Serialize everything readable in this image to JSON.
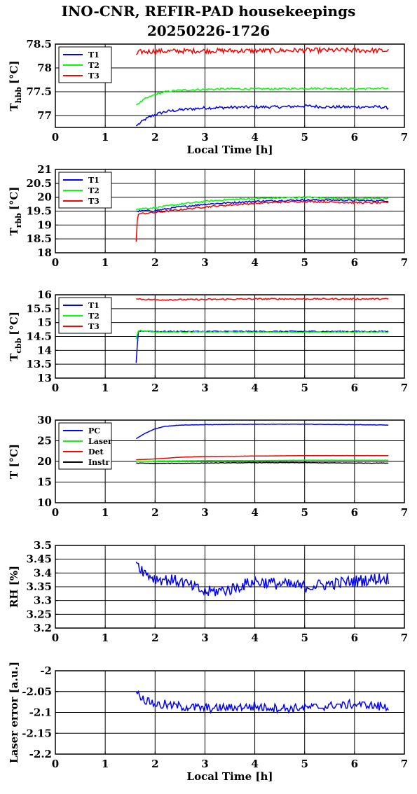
{
  "title": {
    "line1": "INO-CNR, REFIR-PAD housekeepings",
    "line2": "20250226-1726"
  },
  "colors": {
    "blue": "#0000ff",
    "green": "#00ff00",
    "red": "#ff0000",
    "black": "#000000"
  },
  "chart_data": [
    {
      "type": "line",
      "ylabel": "T",
      "ylabel_sub": "hbb",
      "ylabel_unit": "[°C]",
      "xlabel": "Local Time [h]",
      "xlim": [
        0,
        7
      ],
      "ylim": [
        76.75,
        78.5
      ],
      "yticks": [
        77,
        77.5,
        78,
        78.5
      ],
      "xticks": [
        0,
        1,
        2,
        3,
        4,
        5,
        6,
        7
      ],
      "grid": true,
      "legend": "top-left",
      "series": [
        {
          "name": "T1",
          "color": "#0000ff",
          "x": [
            1.62,
            1.8,
            2.0,
            2.2,
            2.5,
            3.0,
            3.5,
            4.0,
            4.5,
            5.0,
            5.5,
            6.0,
            6.5,
            6.68
          ],
          "y": [
            76.78,
            76.92,
            77.02,
            77.08,
            77.12,
            77.16,
            77.17,
            77.18,
            77.18,
            77.2,
            77.18,
            77.18,
            77.18,
            77.16
          ],
          "noise": 0.03
        },
        {
          "name": "T2",
          "color": "#00ff00",
          "x": [
            1.62,
            1.8,
            2.0,
            2.2,
            2.5,
            3.0,
            3.5,
            4.0,
            4.5,
            5.0,
            5.5,
            6.0,
            6.5,
            6.68
          ],
          "y": [
            77.22,
            77.35,
            77.44,
            77.5,
            77.53,
            77.55,
            77.56,
            77.56,
            77.56,
            77.57,
            77.57,
            77.56,
            77.57,
            77.56
          ],
          "noise": 0.02
        },
        {
          "name": "T3",
          "color": "#ff0000",
          "x": [
            1.62,
            1.7,
            2.0,
            3.0,
            4.0,
            5.0,
            6.0,
            6.68
          ],
          "y": [
            78.28,
            78.34,
            78.35,
            78.36,
            78.36,
            78.37,
            78.37,
            78.36
          ],
          "noise": 0.05
        }
      ]
    },
    {
      "type": "line",
      "ylabel": "T",
      "ylabel_sub": "rbb",
      "ylabel_unit": "[°C]",
      "xlabel": "",
      "xlim": [
        0,
        7
      ],
      "ylim": [
        18,
        21
      ],
      "yticks": [
        18,
        18.5,
        19,
        19.5,
        20,
        20.5,
        21
      ],
      "xticks": [
        0,
        1,
        2,
        3,
        4,
        5,
        6,
        7
      ],
      "grid": true,
      "legend": "top-left",
      "series": [
        {
          "name": "T1",
          "color": "#0000ff",
          "x": [
            1.62,
            1.65,
            2.0,
            2.5,
            3.0,
            3.5,
            4.0,
            4.5,
            5.0,
            5.5,
            6.0,
            6.68
          ],
          "y": [
            19.5,
            19.5,
            19.52,
            19.65,
            19.75,
            19.8,
            19.85,
            19.88,
            19.9,
            19.9,
            19.88,
            19.87
          ],
          "noise": 0.03
        },
        {
          "name": "T2",
          "color": "#00ff00",
          "x": [
            1.62,
            1.65,
            2.0,
            2.5,
            3.0,
            3.5,
            4.0,
            4.5,
            5.0,
            5.5,
            6.0,
            6.68
          ],
          "y": [
            19.55,
            19.58,
            19.62,
            19.75,
            19.85,
            19.92,
            19.95,
            19.98,
            20.0,
            19.97,
            19.95,
            19.95
          ],
          "noise": 0.03
        },
        {
          "name": "T3",
          "color": "#ff0000",
          "x": [
            1.62,
            1.65,
            2.0,
            2.5,
            3.0,
            3.5,
            4.0,
            4.5,
            5.0,
            5.5,
            6.0,
            6.68
          ],
          "y": [
            18.4,
            19.4,
            19.45,
            19.55,
            19.65,
            19.72,
            19.78,
            19.82,
            19.85,
            19.83,
            19.8,
            19.8
          ],
          "noise": 0.03
        }
      ]
    },
    {
      "type": "line",
      "ylabel": "T",
      "ylabel_sub": "cbb",
      "ylabel_unit": "[°C]",
      "xlabel": "",
      "xlim": [
        0,
        7
      ],
      "ylim": [
        13,
        16
      ],
      "yticks": [
        13,
        13.5,
        14,
        14.5,
        15,
        15.5,
        16
      ],
      "xticks": [
        0,
        1,
        2,
        3,
        4,
        5,
        6,
        7
      ],
      "grid": true,
      "legend": "top-left",
      "series": [
        {
          "name": "T1",
          "color": "#0000ff",
          "x": [
            1.62,
            1.66,
            1.7,
            2.0,
            3.0,
            4.0,
            5.0,
            6.0,
            6.68
          ],
          "y": [
            13.55,
            14.65,
            14.7,
            14.68,
            14.68,
            14.68,
            14.68,
            14.68,
            14.68
          ],
          "noise": 0.02
        },
        {
          "name": "T2",
          "color": "#00ff00",
          "x": [
            1.62,
            1.66,
            1.7,
            2.0,
            3.0,
            4.0,
            5.0,
            6.0,
            6.68
          ],
          "y": [
            14.4,
            14.7,
            14.72,
            14.66,
            14.66,
            14.66,
            14.65,
            14.66,
            14.66
          ],
          "noise": 0.02
        },
        {
          "name": "T3",
          "color": "#ff0000",
          "x": [
            1.62,
            2.0,
            3.0,
            4.0,
            5.0,
            6.0,
            6.68
          ],
          "y": [
            15.85,
            15.82,
            15.83,
            15.85,
            15.85,
            15.85,
            15.85
          ],
          "noise": 0.025
        }
      ]
    },
    {
      "type": "line",
      "ylabel": "T [°C]",
      "ylabel_sub": "",
      "ylabel_unit": "",
      "xlabel": "",
      "xlim": [
        0,
        7
      ],
      "ylim": [
        10,
        30
      ],
      "yticks": [
        10,
        15,
        20,
        25,
        30
      ],
      "xticks": [
        0,
        1,
        2,
        3,
        4,
        5,
        6,
        7
      ],
      "grid": true,
      "legend": "top-left",
      "series": [
        {
          "name": "PC",
          "color": "#0000ff",
          "x": [
            1.62,
            1.8,
            2.0,
            2.2,
            2.5,
            3.0,
            4.0,
            5.0,
            6.0,
            6.68
          ],
          "y": [
            25.5,
            26.8,
            27.9,
            28.5,
            28.8,
            28.9,
            29.0,
            29.0,
            28.9,
            28.8
          ],
          "noise": 0.04
        },
        {
          "name": "Laser",
          "color": "#00ff00",
          "x": [
            1.62,
            2.0,
            3.0,
            4.0,
            5.0,
            6.0,
            6.68
          ],
          "y": [
            20.0,
            20.1,
            20.2,
            20.2,
            20.3,
            20.3,
            20.3
          ],
          "noise": 0.02
        },
        {
          "name": "Det",
          "color": "#ff0000",
          "x": [
            1.62,
            2.0,
            2.5,
            3.0,
            4.0,
            5.0,
            6.0,
            6.68
          ],
          "y": [
            20.4,
            20.6,
            21.0,
            21.2,
            21.3,
            21.4,
            21.4,
            21.4
          ],
          "noise": 0.02
        },
        {
          "name": "Instr",
          "color": "#000000",
          "x": [
            1.62,
            2.0,
            3.0,
            4.0,
            5.0,
            6.0,
            6.68
          ],
          "y": [
            19.6,
            19.5,
            19.6,
            19.7,
            19.7,
            19.6,
            19.6
          ],
          "noise": 0.06
        }
      ]
    },
    {
      "type": "line",
      "ylabel": "RH [%]",
      "ylabel_sub": "",
      "ylabel_unit": "",
      "xlabel": "",
      "xlim": [
        0,
        7
      ],
      "ylim": [
        3.2,
        3.5
      ],
      "yticks": [
        3.2,
        3.25,
        3.3,
        3.35,
        3.4,
        3.45,
        3.5
      ],
      "xticks": [
        0,
        1,
        2,
        3,
        4,
        5,
        6,
        7
      ],
      "grid": true,
      "legend": "none",
      "series": [
        {
          "name": "",
          "color": "#0000ff",
          "x": [
            1.62,
            1.8,
            2.0,
            2.5,
            3.0,
            3.5,
            4.0,
            4.5,
            5.0,
            5.5,
            6.0,
            6.5,
            6.68
          ],
          "y": [
            3.44,
            3.4,
            3.38,
            3.37,
            3.33,
            3.34,
            3.37,
            3.36,
            3.35,
            3.36,
            3.37,
            3.38,
            3.38
          ],
          "noise": 0.022
        }
      ]
    },
    {
      "type": "line",
      "ylabel": "Laser error [a.u.]",
      "ylabel_sub": "",
      "ylabel_unit": "",
      "xlabel": "Local Time [h]",
      "xlim": [
        0,
        7
      ],
      "ylim": [
        -2.2,
        -2.0
      ],
      "yticks": [
        -2.2,
        -2.15,
        -2.1,
        -2.05,
        -2
      ],
      "xticks": [
        0,
        1,
        2,
        3,
        4,
        5,
        6,
        7
      ],
      "grid": true,
      "legend": "none",
      "series": [
        {
          "name": "",
          "color": "#0000ff",
          "x": [
            1.62,
            1.8,
            2.0,
            2.5,
            3.0,
            3.5,
            4.0,
            4.5,
            5.0,
            5.5,
            6.0,
            6.5,
            6.68
          ],
          "y": [
            -2.05,
            -2.07,
            -2.08,
            -2.085,
            -2.09,
            -2.09,
            -2.085,
            -2.09,
            -2.09,
            -2.085,
            -2.08,
            -2.085,
            -2.09
          ],
          "noise": 0.01,
          "step": 0.005
        }
      ]
    }
  ]
}
